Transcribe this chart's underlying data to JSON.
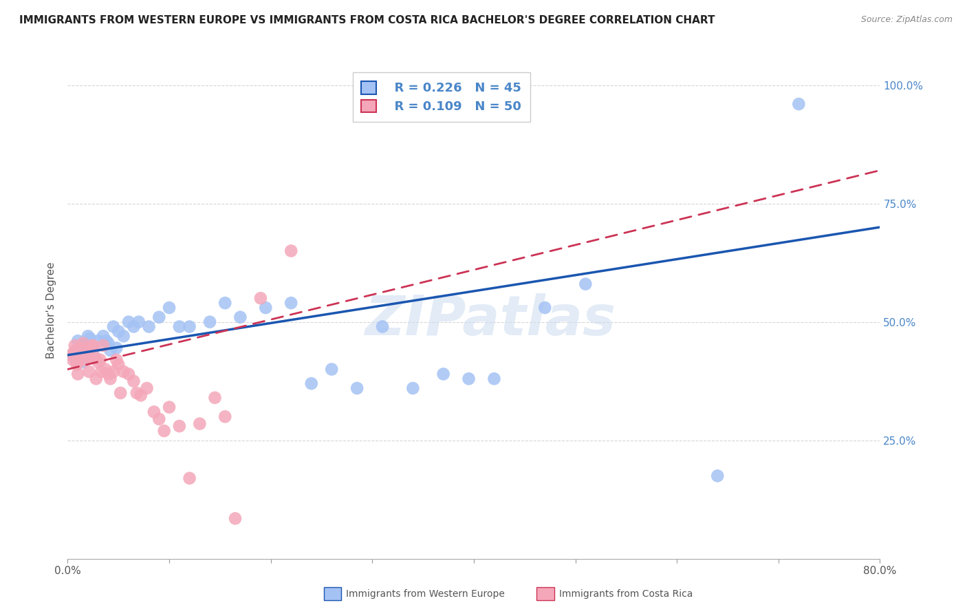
{
  "title": "IMMIGRANTS FROM WESTERN EUROPE VS IMMIGRANTS FROM COSTA RICA BACHELOR'S DEGREE CORRELATION CHART",
  "source": "Source: ZipAtlas.com",
  "xlabel_blue": "Immigrants from Western Europe",
  "xlabel_pink": "Immigrants from Costa Rica",
  "ylabel": "Bachelor's Degree",
  "xlim": [
    0.0,
    0.8
  ],
  "ylim": [
    0.0,
    1.05
  ],
  "legend_blue_R": "R = 0.226",
  "legend_blue_N": "N = 45",
  "legend_pink_R": "R = 0.109",
  "legend_pink_N": "N = 50",
  "blue_color": "#a4c2f4",
  "pink_color": "#f4a7b9",
  "blue_line_color": "#1a56b0",
  "pink_line_color": "#cc3355",
  "tick_color": "#4a86c8",
  "grid_color": "#cccccc",
  "background_color": "#ffffff",
  "title_fontsize": 11,
  "axis_label_fontsize": 11,
  "tick_fontsize": 11,
  "watermark_text": "ZIPatlas",
  "blue_x": [
    0.005,
    0.008,
    0.01,
    0.01,
    0.012,
    0.015,
    0.015,
    0.018,
    0.02,
    0.022,
    0.025,
    0.03,
    0.035,
    0.038,
    0.04,
    0.042,
    0.045,
    0.048,
    0.05,
    0.055,
    0.06,
    0.065,
    0.07,
    0.08,
    0.09,
    0.1,
    0.11,
    0.12,
    0.14,
    0.155,
    0.17,
    0.195,
    0.22,
    0.24,
    0.26,
    0.285,
    0.31,
    0.34,
    0.37,
    0.395,
    0.42,
    0.47,
    0.51,
    0.64,
    0.72
  ],
  "blue_y": [
    0.43,
    0.42,
    0.46,
    0.44,
    0.435,
    0.45,
    0.415,
    0.445,
    0.47,
    0.465,
    0.44,
    0.46,
    0.47,
    0.46,
    0.455,
    0.44,
    0.49,
    0.445,
    0.48,
    0.47,
    0.5,
    0.49,
    0.5,
    0.49,
    0.51,
    0.53,
    0.49,
    0.49,
    0.5,
    0.54,
    0.51,
    0.53,
    0.54,
    0.37,
    0.4,
    0.36,
    0.49,
    0.36,
    0.39,
    0.38,
    0.38,
    0.53,
    0.58,
    0.175,
    0.96
  ],
  "pink_x": [
    0.003,
    0.005,
    0.006,
    0.007,
    0.008,
    0.009,
    0.01,
    0.01,
    0.012,
    0.013,
    0.015,
    0.016,
    0.018,
    0.019,
    0.02,
    0.021,
    0.022,
    0.024,
    0.025,
    0.027,
    0.028,
    0.03,
    0.032,
    0.033,
    0.035,
    0.037,
    0.04,
    0.042,
    0.045,
    0.048,
    0.05,
    0.052,
    0.055,
    0.06,
    0.065,
    0.068,
    0.072,
    0.078,
    0.085,
    0.09,
    0.095,
    0.1,
    0.11,
    0.12,
    0.13,
    0.145,
    0.155,
    0.165,
    0.19,
    0.22
  ],
  "pink_y": [
    0.43,
    0.42,
    0.435,
    0.45,
    0.44,
    0.41,
    0.415,
    0.39,
    0.445,
    0.43,
    0.455,
    0.42,
    0.43,
    0.445,
    0.43,
    0.395,
    0.425,
    0.45,
    0.45,
    0.425,
    0.38,
    0.415,
    0.42,
    0.395,
    0.45,
    0.4,
    0.39,
    0.38,
    0.395,
    0.42,
    0.41,
    0.35,
    0.395,
    0.39,
    0.375,
    0.35,
    0.345,
    0.36,
    0.31,
    0.295,
    0.27,
    0.32,
    0.28,
    0.17,
    0.285,
    0.34,
    0.3,
    0.085,
    0.55,
    0.65
  ],
  "blue_line_x0": 0.0,
  "blue_line_x1": 0.8,
  "blue_line_y0": 0.43,
  "blue_line_y1": 0.7,
  "pink_line_x0": 0.0,
  "pink_line_x1": 0.8,
  "pink_line_y0": 0.4,
  "pink_line_y1": 0.82
}
